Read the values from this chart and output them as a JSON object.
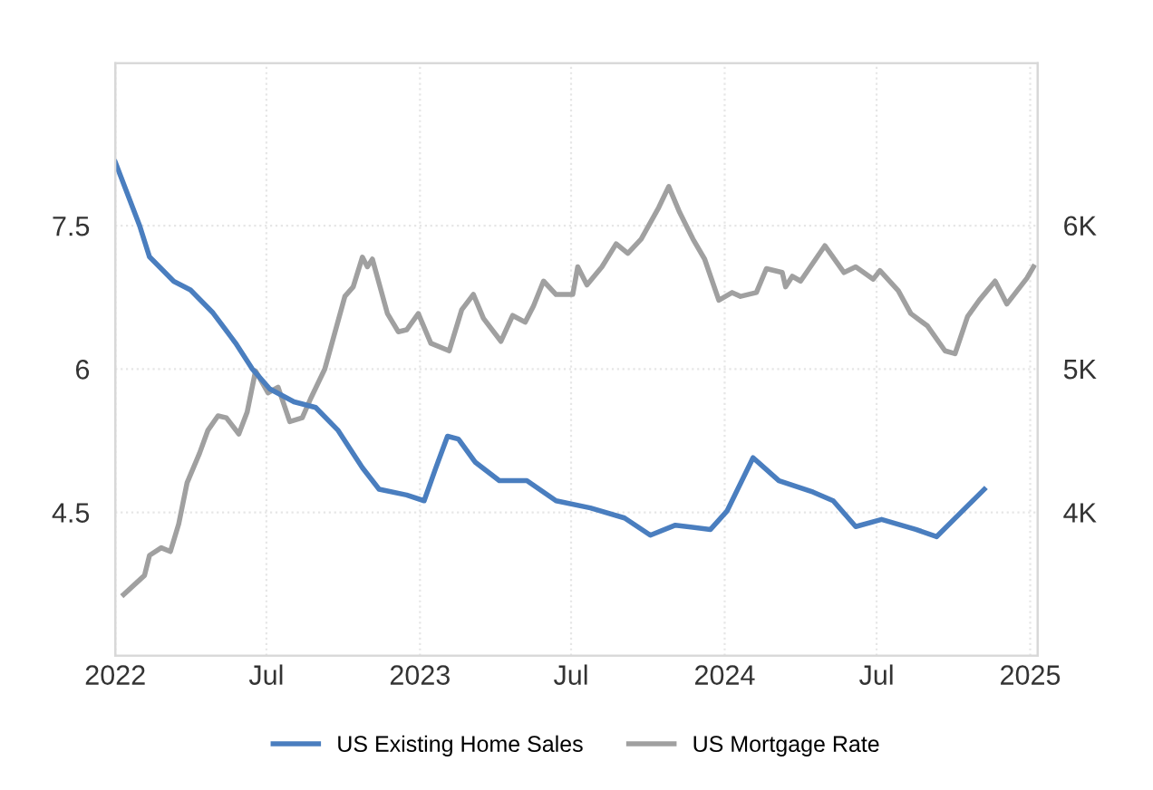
{
  "chart_data": {
    "type": "line",
    "series": [
      {
        "name": "US Existing Home Sales",
        "color": "#4a7ebf",
        "axis": "y2",
        "x": [
          "2022-01-01",
          "2022-01-30",
          "2022-02-11",
          "2022-03-12",
          "2022-04-01",
          "2022-04-28",
          "2022-05-25",
          "2022-06-14",
          "2022-07-05",
          "2022-08-03",
          "2022-08-29",
          "2022-09-25",
          "2022-10-24",
          "2022-11-13",
          "2022-12-16",
          "2023-01-06",
          "2023-01-20",
          "2023-02-03",
          "2023-02-16",
          "2023-03-08",
          "2023-04-06",
          "2023-05-09",
          "2023-06-13",
          "2023-07-24",
          "2023-09-03",
          "2023-10-04",
          "2023-11-03",
          "2023-12-15",
          "2024-01-04",
          "2024-02-04",
          "2024-03-06",
          "2024-04-16",
          "2024-05-10",
          "2024-06-06",
          "2024-07-07",
          "2024-08-17",
          "2024-09-11",
          "2024-11-07"
        ],
        "values": [
          6440,
          6000,
          5780,
          5610,
          5550,
          5390,
          5180,
          5000,
          4860,
          4770,
          4730,
          4570,
          4310,
          4160,
          4120,
          4080,
          4310,
          4530,
          4510,
          4350,
          4220,
          4220,
          4080,
          4030,
          3960,
          3840,
          3910,
          3880,
          4010,
          4380,
          4220,
          4140,
          4080,
          3900,
          3950,
          3880,
          3830,
          4160
        ]
      },
      {
        "name": "US Mortgage Rate",
        "color": "#a0a0a0",
        "x": [
          "2022-01-11",
          "2022-02-05",
          "2022-02-11",
          "2022-02-25",
          "2022-03-08",
          "2022-03-18",
          "2022-03-28",
          "2022-04-12",
          "2022-04-22",
          "2022-05-04",
          "2022-05-14",
          "2022-05-29",
          "2022-06-08",
          "2022-06-18",
          "2022-07-03",
          "2022-07-15",
          "2022-07-29",
          "2022-08-13",
          "2022-08-23",
          "2022-09-09",
          "2022-10-03",
          "2022-10-13",
          "2022-10-24",
          "2022-10-30",
          "2022-11-05",
          "2022-11-23",
          "2022-12-06",
          "2022-12-16",
          "2022-12-30",
          "2023-01-14",
          "2023-02-05",
          "2023-02-20",
          "2023-03-06",
          "2023-03-18",
          "2023-04-08",
          "2023-04-22",
          "2023-05-07",
          "2023-05-17",
          "2023-05-29",
          "2023-06-13",
          "2023-07-03",
          "2023-07-09",
          "2023-07-20",
          "2023-08-07",
          "2023-08-24",
          "2023-09-07",
          "2023-09-23",
          "2023-10-14",
          "2023-10-26",
          "2023-11-08",
          "2023-11-24",
          "2023-12-08",
          "2023-12-25",
          "2024-01-10",
          "2024-01-20",
          "2024-02-08",
          "2024-02-20",
          "2024-03-10",
          "2024-03-14",
          "2024-03-22",
          "2024-04-01",
          "2024-04-30",
          "2024-05-23",
          "2024-06-06",
          "2024-06-27",
          "2024-07-05",
          "2024-07-27",
          "2024-08-11",
          "2024-08-31",
          "2024-09-21",
          "2024-10-03",
          "2024-10-18",
          "2024-11-01",
          "2024-11-20",
          "2024-12-04",
          "2024-12-28",
          "2025-01-05"
        ],
        "values": [
          3.64,
          3.84,
          4.05,
          4.13,
          4.09,
          4.38,
          4.81,
          5.12,
          5.36,
          5.51,
          5.49,
          5.32,
          5.55,
          5.98,
          5.75,
          5.81,
          5.45,
          5.49,
          5.69,
          6.0,
          6.76,
          6.86,
          7.17,
          7.07,
          7.15,
          6.58,
          6.39,
          6.41,
          6.58,
          6.27,
          6.19,
          6.62,
          6.78,
          6.53,
          6.29,
          6.56,
          6.49,
          6.66,
          6.92,
          6.78,
          6.78,
          7.07,
          6.88,
          7.07,
          7.31,
          7.21,
          7.36,
          7.69,
          7.91,
          7.64,
          7.36,
          7.15,
          6.72,
          6.8,
          6.76,
          6.8,
          7.05,
          7.01,
          6.86,
          6.97,
          6.92,
          7.29,
          7.01,
          7.07,
          6.94,
          7.03,
          6.82,
          6.58,
          6.45,
          6.19,
          6.16,
          6.55,
          6.72,
          6.92,
          6.68,
          6.95,
          7.07
        ]
      }
    ],
    "xlim": [
      "2022-01-01",
      "2025-01-10"
    ],
    "xticks": [
      {
        "value": "2022-01-01",
        "label": "2022"
      },
      {
        "value": "2022-07-01",
        "label": "Jul"
      },
      {
        "value": "2023-01-01",
        "label": "2023"
      },
      {
        "value": "2023-07-01",
        "label": "Jul"
      },
      {
        "value": "2024-01-01",
        "label": "2024"
      },
      {
        "value": "2024-07-01",
        "label": "Jul"
      },
      {
        "value": "2025-01-01",
        "label": "2025"
      }
    ],
    "ylim": [
      3,
      9.2
    ],
    "yticks": [
      4.5,
      6,
      7.5
    ],
    "y2lim": [
      3000,
      7130
    ],
    "y2ticks": [
      {
        "value": 4000,
        "label": "4K"
      },
      {
        "value": 5000,
        "label": "5K"
      },
      {
        "value": 6000,
        "label": "6K"
      }
    ],
    "grid": true,
    "legend": "bottom"
  }
}
